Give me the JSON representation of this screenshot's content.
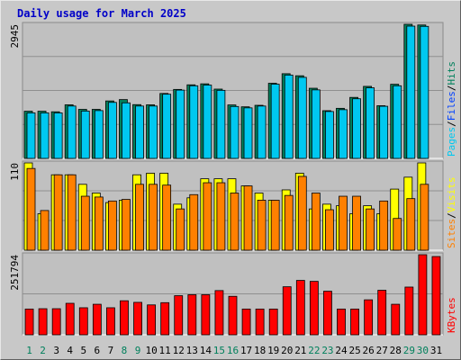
{
  "title": "Daily usage for March 2025",
  "colors": {
    "frame_bg": "#c8c8c8",
    "panel_bg": "#c0c0c0",
    "hits": "#00805c",
    "files": "#0040ff",
    "pages": "#00c8f0",
    "visits": "#ffff00",
    "sites": "#ff8000",
    "kbytes": "#ff0000",
    "weekend_label": "#00805c",
    "weekday_label": "#000000"
  },
  "chart_data": [
    {
      "type": "bar",
      "panel": "top",
      "ymax_label": "2945",
      "ylim": [
        0,
        2945
      ],
      "legend": [
        {
          "name": "Pages",
          "color": "#00c8f0"
        },
        {
          "sep": "/"
        },
        {
          "name": "Files",
          "color": "#0040ff"
        },
        {
          "sep": "/"
        },
        {
          "name": "Hits",
          "color": "#00805c"
        }
      ],
      "series": [
        {
          "name": "Hits",
          "color": "#00805c",
          "values": [
            1036,
            1036,
            1024,
            1177,
            1077,
            1077,
            1262,
            1292,
            1181,
            1177,
            1426,
            1515,
            1616,
            1638,
            1522,
            1174,
            1133,
            1166,
            1650,
            1860,
            1815,
            1541,
            1048,
            1100,
            1340,
            1582,
            1157,
            1628,
            2945,
            2930,
            0
          ]
        },
        {
          "name": "Pages",
          "color": "#00c8f0",
          "values": [
            1000,
            1000,
            1000,
            1150,
            1040,
            1050,
            1230,
            1220,
            1150,
            1150,
            1410,
            1500,
            1595,
            1610,
            1495,
            1140,
            1110,
            1150,
            1630,
            1830,
            1780,
            1505,
            1030,
            1070,
            1310,
            1550,
            1145,
            1595,
            2905,
            2900,
            0
          ]
        }
      ]
    },
    {
      "type": "bar",
      "panel": "middle",
      "ymax_label": "110",
      "ylim": [
        0,
        110
      ],
      "legend": [
        {
          "name": "Sites",
          "color": "#ff8000"
        },
        {
          "sep": "/"
        },
        {
          "name": "Visits",
          "color": "#ffff00"
        }
      ],
      "series": [
        {
          "name": "Visits",
          "color": "#ffff00",
          "values": [
            110,
            46,
            95,
            95,
            83,
            72,
            60,
            63,
            95,
            97,
            97,
            58,
            66,
            90,
            90,
            90,
            81,
            72,
            63,
            76,
            97,
            52,
            58,
            56,
            46,
            56,
            46,
            77,
            92,
            110,
            0
          ]
        },
        {
          "name": "Sites",
          "color": "#ff8000",
          "values": [
            103,
            50,
            95,
            95,
            68,
            67,
            62,
            64,
            83,
            83,
            82,
            52,
            70,
            85,
            85,
            72,
            81,
            63,
            63,
            69,
            93,
            72,
            51,
            68,
            68,
            52,
            62,
            40,
            65,
            83,
            0
          ]
        }
      ]
    },
    {
      "type": "bar",
      "panel": "bottom",
      "ymax_label": "251794",
      "ylim": [
        0,
        251794
      ],
      "legend": [
        {
          "name": "KBytes",
          "color": "#ff0000"
        }
      ],
      "series": [
        {
          "name": "KBytes",
          "color": "#ff0000",
          "values": [
            81000,
            82000,
            82000,
            99000,
            85000,
            96000,
            85000,
            107000,
            102000,
            94000,
            101000,
            123000,
            126000,
            126000,
            139000,
            121000,
            81000,
            81000,
            81000,
            151000,
            171000,
            168000,
            137000,
            81000,
            81000,
            110000,
            140000,
            96000,
            150000,
            251794,
            246000
          ]
        }
      ]
    }
  ],
  "days": [
    {
      "label": "1",
      "weekend": true
    },
    {
      "label": "2",
      "weekend": true
    },
    {
      "label": "3",
      "weekend": false
    },
    {
      "label": "4",
      "weekend": false
    },
    {
      "label": "5",
      "weekend": false
    },
    {
      "label": "6",
      "weekend": false
    },
    {
      "label": "7",
      "weekend": false
    },
    {
      "label": "8",
      "weekend": true
    },
    {
      "label": "9",
      "weekend": true
    },
    {
      "label": "10",
      "weekend": false
    },
    {
      "label": "11",
      "weekend": false
    },
    {
      "label": "12",
      "weekend": false
    },
    {
      "label": "13",
      "weekend": false
    },
    {
      "label": "14",
      "weekend": false
    },
    {
      "label": "15",
      "weekend": true
    },
    {
      "label": "16",
      "weekend": true
    },
    {
      "label": "17",
      "weekend": false
    },
    {
      "label": "18",
      "weekend": false
    },
    {
      "label": "19",
      "weekend": false
    },
    {
      "label": "20",
      "weekend": false
    },
    {
      "label": "21",
      "weekend": false
    },
    {
      "label": "22",
      "weekend": true
    },
    {
      "label": "23",
      "weekend": true
    },
    {
      "label": "24",
      "weekend": false
    },
    {
      "label": "25",
      "weekend": false
    },
    {
      "label": "26",
      "weekend": false
    },
    {
      "label": "27",
      "weekend": false
    },
    {
      "label": "28",
      "weekend": false
    },
    {
      "label": "29",
      "weekend": true
    },
    {
      "label": "30",
      "weekend": true
    },
    {
      "label": "31",
      "weekend": false
    }
  ]
}
